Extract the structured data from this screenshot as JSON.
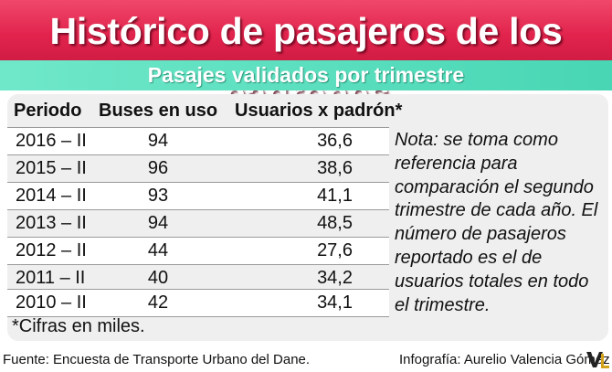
{
  "title": "Histórico de pasajeros de los padrones",
  "subtitle": "Pasajes validados por trimestre",
  "table": {
    "headers": [
      "Periodo",
      "Buses en uso",
      "Usuarios x padrón*"
    ],
    "rows": [
      {
        "period": "2016 – II",
        "buses": "94",
        "users": "36,6"
      },
      {
        "period": "2015 – II",
        "buses": "96",
        "users": "38,6"
      },
      {
        "period": "2014 – II",
        "buses": "93",
        "users": "41,1"
      },
      {
        "period": "2013 – II",
        "buses": "94",
        "users": "48,5"
      },
      {
        "period": "2012 – II",
        "buses": "44",
        "users": "27,6"
      },
      {
        "period": "2011 – II",
        "buses": "40",
        "users": "34,2"
      },
      {
        "period": "2010 – II",
        "buses": "42",
        "users": "34,1"
      }
    ]
  },
  "note": "Nota: se toma como referencia para comparación el segundo trimestre de cada año.  El número de pasajeros reportado es el de usuarios totales en todo el trimestre.",
  "footnote": "*Cifras en miles.",
  "source": "Fuente: Encuesta de Transporte Urbano del Dane.",
  "credit": "Infografía: Aurelio Valencia Gómez",
  "logo_text": "VL",
  "colors": {
    "title_bar": "#e2244d",
    "subtitle_bar": "#48d6b4",
    "panel": "#efefef",
    "logo_v": "#222222",
    "logo_l": "#d4a21a"
  }
}
